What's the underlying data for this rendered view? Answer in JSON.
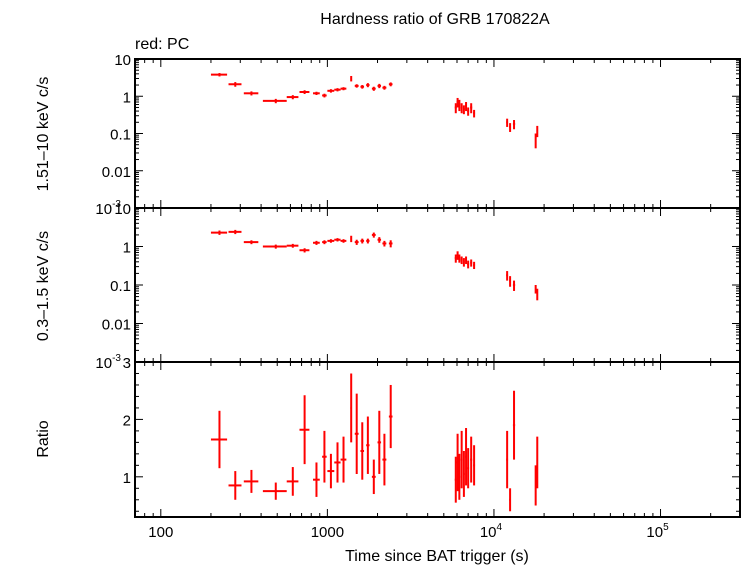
{
  "chart_data": {
    "type": "scatter",
    "title": "Hardness ratio of GRB 170822A",
    "legend": "red: PC",
    "xlabel": "Time since BAT trigger (s)",
    "xscale": "log",
    "xlim": [
      70,
      300000
    ],
    "x_ticks": [
      {
        "value": 100,
        "label": "100"
      },
      {
        "value": 1000,
        "label": "1000"
      },
      {
        "value": 10000,
        "label": "10",
        "exp": "4"
      },
      {
        "value": 100000,
        "label": "10",
        "exp": "5"
      }
    ],
    "color": "#ff0000",
    "panels": [
      {
        "name": "hard",
        "ylabel": "1.51–10 keV c/s",
        "yscale": "log",
        "ylim": [
          0.001,
          10
        ],
        "y_ticks": [
          {
            "value": 10,
            "label": "10"
          },
          {
            "value": 1,
            "label": "1"
          },
          {
            "value": 0.1,
            "label": "0.1"
          },
          {
            "value": 0.01,
            "label": "0.01"
          },
          {
            "value": 0.001,
            "label": "10",
            "exp": "-3"
          }
        ],
        "points": [
          [
            225,
            3.8,
            25,
            0.4
          ],
          [
            280,
            2.1,
            25,
            0.3
          ],
          [
            350,
            1.2,
            35,
            0.15
          ],
          [
            490,
            0.75,
            80,
            0.1
          ],
          [
            620,
            0.95,
            50,
            0.12
          ],
          [
            730,
            1.3,
            50,
            0.15
          ],
          [
            860,
            1.2,
            40,
            0.12
          ],
          [
            960,
            1.05,
            30,
            0.12
          ],
          [
            1050,
            1.4,
            50,
            0.15
          ],
          [
            1150,
            1.5,
            50,
            0.15
          ],
          [
            1250,
            1.6,
            50,
            0.15
          ],
          [
            1390,
            3.0,
            15,
            0.5
          ],
          [
            1500,
            1.9,
            40,
            0.2
          ],
          [
            1620,
            1.8,
            40,
            0.2
          ],
          [
            1750,
            2.0,
            40,
            0.25
          ],
          [
            1900,
            1.6,
            50,
            0.2
          ],
          [
            2050,
            1.9,
            50,
            0.25
          ],
          [
            2200,
            1.7,
            60,
            0.2
          ],
          [
            2400,
            2.1,
            60,
            0.25
          ],
          [
            5900,
            0.5,
            80,
            0.15
          ],
          [
            6050,
            0.7,
            80,
            0.2
          ],
          [
            6200,
            0.6,
            70,
            0.2
          ],
          [
            6400,
            0.5,
            80,
            0.15
          ],
          [
            6600,
            0.45,
            80,
            0.12
          ],
          [
            6800,
            0.55,
            80,
            0.15
          ],
          [
            7000,
            0.4,
            90,
            0.1
          ],
          [
            7300,
            0.5,
            100,
            0.15
          ],
          [
            7600,
            0.35,
            100,
            0.08
          ],
          [
            12000,
            0.2,
            150,
            0.05
          ],
          [
            12500,
            0.15,
            150,
            0.04
          ],
          [
            13200,
            0.18,
            200,
            0.05
          ],
          [
            17800,
            0.07,
            150,
            0.03
          ],
          [
            18200,
            0.12,
            150,
            0.04
          ]
        ]
      },
      {
        "name": "soft",
        "ylabel": "0.3–1.5 keV c/s",
        "yscale": "log",
        "ylim": [
          0.001,
          10
        ],
        "y_ticks": [
          {
            "value": 10,
            "label": "10"
          },
          {
            "value": 1,
            "label": "1"
          },
          {
            "value": 0.1,
            "label": "0.1"
          },
          {
            "value": 0.01,
            "label": "0.01"
          },
          {
            "value": 0.001,
            "label": "10",
            "exp": "-3"
          }
        ],
        "points": [
          [
            225,
            2.3,
            25,
            0.3
          ],
          [
            280,
            2.4,
            25,
            0.3
          ],
          [
            350,
            1.3,
            35,
            0.15
          ],
          [
            490,
            1.0,
            80,
            0.12
          ],
          [
            620,
            1.05,
            50,
            0.12
          ],
          [
            730,
            0.8,
            50,
            0.1
          ],
          [
            860,
            1.25,
            40,
            0.15
          ],
          [
            960,
            1.3,
            30,
            0.15
          ],
          [
            1050,
            1.4,
            50,
            0.15
          ],
          [
            1150,
            1.5,
            50,
            0.15
          ],
          [
            1250,
            1.4,
            50,
            0.15
          ],
          [
            1390,
            1.6,
            15,
            0.3
          ],
          [
            1500,
            1.3,
            40,
            0.2
          ],
          [
            1620,
            1.4,
            40,
            0.2
          ],
          [
            1750,
            1.4,
            40,
            0.2
          ],
          [
            1900,
            2.0,
            50,
            0.3
          ],
          [
            2050,
            1.5,
            50,
            0.25
          ],
          [
            2200,
            1.2,
            60,
            0.2
          ],
          [
            2400,
            1.2,
            60,
            0.25
          ],
          [
            5900,
            0.5,
            80,
            0.12
          ],
          [
            6050,
            0.6,
            80,
            0.15
          ],
          [
            6200,
            0.5,
            70,
            0.12
          ],
          [
            6400,
            0.45,
            80,
            0.1
          ],
          [
            6600,
            0.4,
            80,
            0.1
          ],
          [
            6800,
            0.45,
            80,
            0.1
          ],
          [
            7000,
            0.35,
            90,
            0.08
          ],
          [
            7300,
            0.38,
            100,
            0.08
          ],
          [
            7600,
            0.33,
            100,
            0.07
          ],
          [
            12000,
            0.18,
            150,
            0.05
          ],
          [
            12500,
            0.13,
            150,
            0.04
          ],
          [
            13200,
            0.1,
            200,
            0.03
          ],
          [
            17800,
            0.08,
            150,
            0.02
          ],
          [
            18200,
            0.06,
            150,
            0.02
          ]
        ]
      },
      {
        "name": "ratio",
        "ylabel": "Ratio",
        "yscale": "linear",
        "ylim": [
          0.3,
          3
        ],
        "y_ticks": [
          {
            "value": 1,
            "label": "1"
          },
          {
            "value": 2,
            "label": "2"
          },
          {
            "value": 3,
            "label": "3"
          }
        ],
        "points": [
          [
            225,
            1.65,
            25,
            0.5
          ],
          [
            280,
            0.85,
            25,
            0.25
          ],
          [
            350,
            0.92,
            35,
            0.2
          ],
          [
            490,
            0.75,
            80,
            0.15
          ],
          [
            620,
            0.92,
            50,
            0.25
          ],
          [
            730,
            1.82,
            50,
            0.6
          ],
          [
            860,
            0.95,
            40,
            0.3
          ],
          [
            960,
            1.35,
            30,
            0.45
          ],
          [
            1050,
            1.1,
            50,
            0.3
          ],
          [
            1150,
            1.25,
            50,
            0.35
          ],
          [
            1250,
            1.3,
            50,
            0.4
          ],
          [
            1390,
            2.2,
            15,
            0.6
          ],
          [
            1500,
            1.75,
            40,
            0.7
          ],
          [
            1620,
            1.45,
            40,
            0.5
          ],
          [
            1750,
            1.55,
            40,
            0.5
          ],
          [
            1900,
            1.0,
            50,
            0.3
          ],
          [
            2050,
            1.6,
            50,
            0.55
          ],
          [
            2200,
            1.3,
            60,
            0.45
          ],
          [
            2400,
            2.05,
            60,
            0.55
          ],
          [
            5900,
            0.95,
            80,
            0.4
          ],
          [
            6050,
            1.25,
            80,
            0.5
          ],
          [
            6200,
            1.0,
            70,
            0.4
          ],
          [
            6400,
            1.3,
            80,
            0.5
          ],
          [
            6600,
            1.05,
            80,
            0.4
          ],
          [
            6800,
            1.35,
            80,
            0.5
          ],
          [
            7000,
            1.15,
            90,
            0.35
          ],
          [
            7300,
            1.3,
            100,
            0.4
          ],
          [
            7600,
            1.2,
            100,
            0.35
          ],
          [
            12000,
            1.3,
            150,
            0.5
          ],
          [
            12500,
            0.6,
            150,
            0.2
          ],
          [
            13200,
            1.9,
            200,
            0.6
          ],
          [
            17800,
            0.85,
            150,
            0.35
          ],
          [
            18200,
            1.25,
            150,
            0.45
          ]
        ]
      }
    ]
  }
}
